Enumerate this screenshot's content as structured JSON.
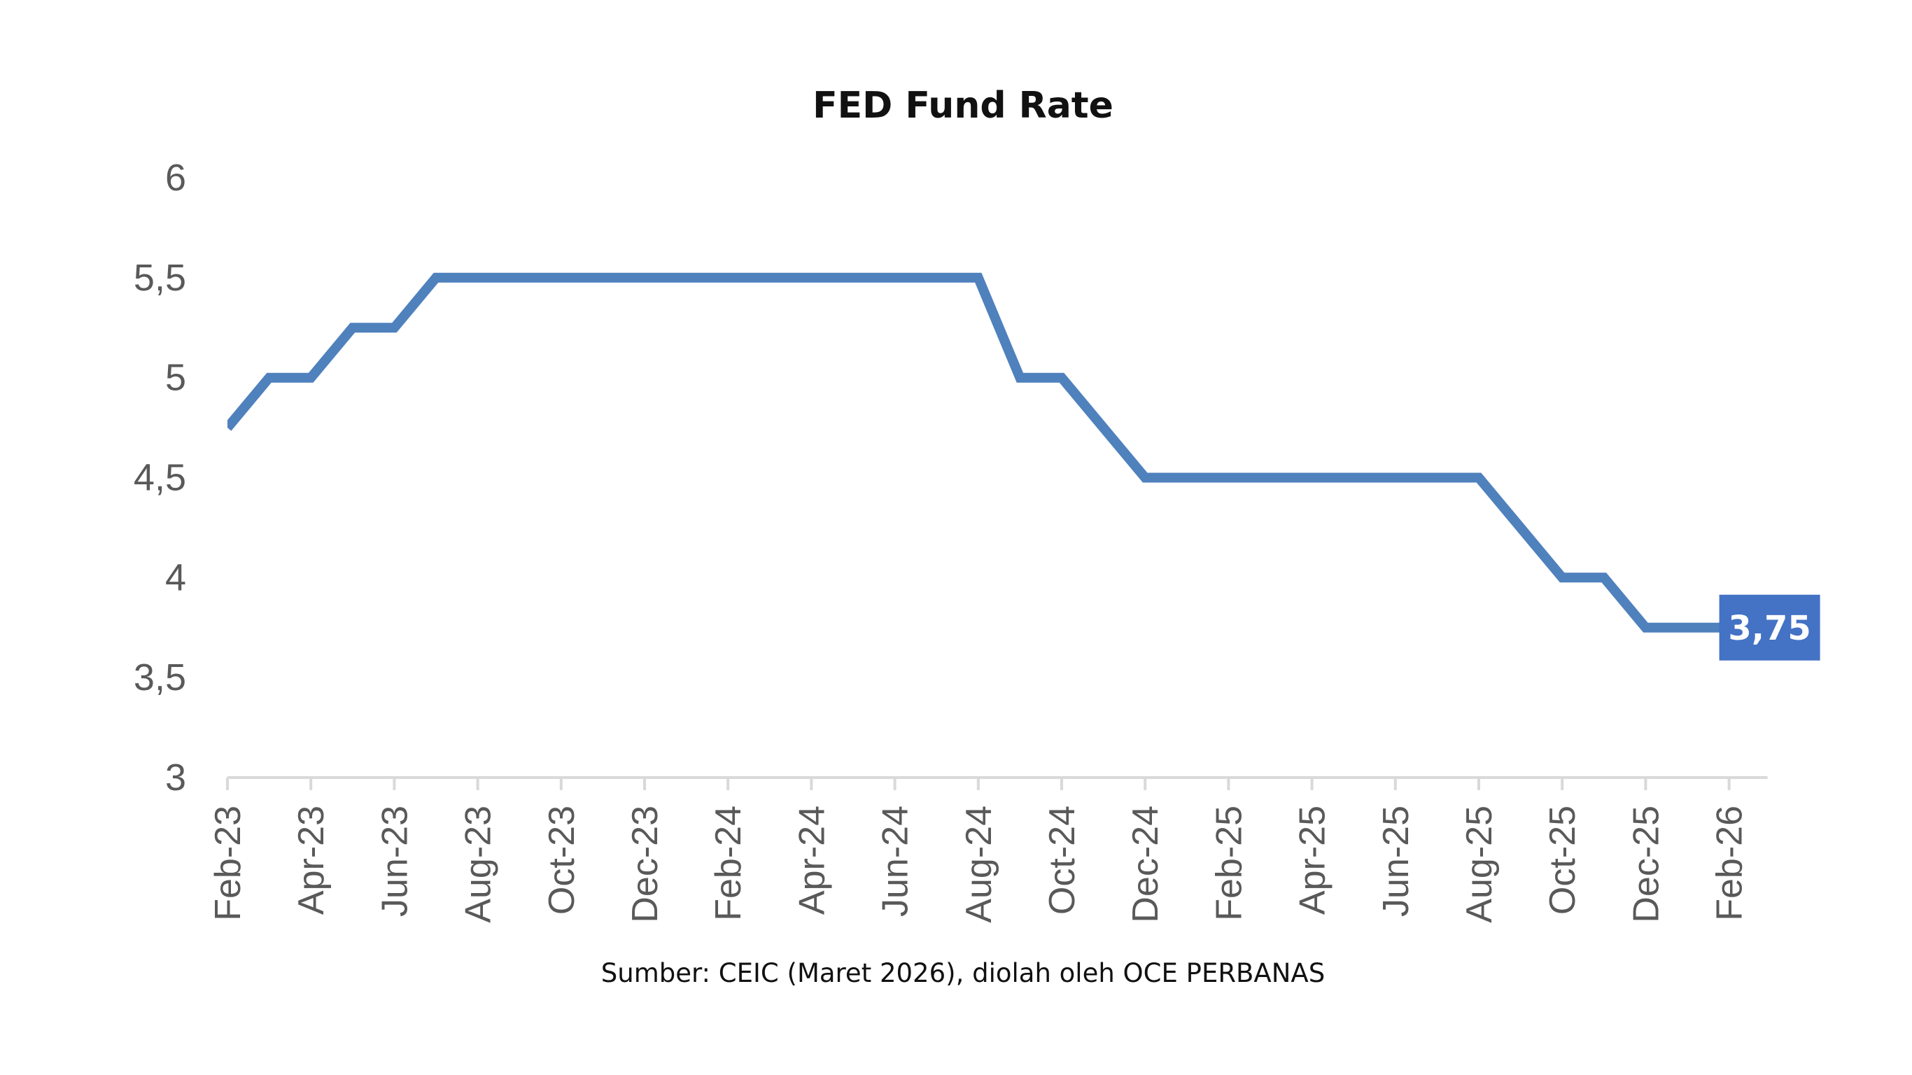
{
  "chart_data": {
    "type": "line",
    "title": "FED Fund Rate",
    "xlabel": "",
    "ylabel": "",
    "x": [
      "Feb-23",
      "Mar-23",
      "Apr-23",
      "May-23",
      "Jun-23",
      "Jul-23",
      "Aug-23",
      "Sep-23",
      "Oct-23",
      "Nov-23",
      "Dec-23",
      "Jan-24",
      "Feb-24",
      "Mar-24",
      "Apr-24",
      "May-24",
      "Jun-24",
      "Jul-24",
      "Aug-24",
      "Sep-24",
      "Oct-24",
      "Nov-24",
      "Dec-24",
      "Jan-25",
      "Feb-25",
      "Mar-25",
      "Apr-25",
      "May-25",
      "Jun-25",
      "Jul-25",
      "Aug-25",
      "Sep-25",
      "Oct-25",
      "Nov-25",
      "Dec-25",
      "Jan-26",
      "Feb-26"
    ],
    "x_tick_labels": [
      "Feb-23",
      "Apr-23",
      "Jun-23",
      "Aug-23",
      "Oct-23",
      "Dec-23",
      "Feb-24",
      "Apr-24",
      "Jun-24",
      "Aug-24",
      "Oct-24",
      "Dec-24",
      "Feb-25",
      "Apr-25",
      "Jun-25",
      "Aug-25",
      "Oct-25",
      "Dec-25",
      "Feb-26"
    ],
    "series": [
      {
        "values": [
          4.75,
          5.0,
          5.0,
          5.25,
          5.25,
          5.5,
          5.5,
          5.5,
          5.5,
          5.5,
          5.5,
          5.5,
          5.5,
          5.5,
          5.5,
          5.5,
          5.5,
          5.5,
          5.5,
          5.0,
          5.0,
          4.75,
          4.5,
          4.5,
          4.5,
          4.5,
          4.5,
          4.5,
          4.5,
          4.5,
          4.5,
          4.25,
          4.0,
          4.0,
          3.75,
          3.75,
          3.75
        ]
      }
    ],
    "ylim": [
      3,
      6
    ],
    "y_ticks": [
      "3",
      "3,5",
      "4",
      "4,5",
      "5",
      "5,5",
      "6"
    ],
    "y_tick_values": [
      3,
      3.5,
      4,
      4.5,
      5,
      5.5,
      6
    ],
    "data_label": {
      "index": 36,
      "text": "3,75"
    },
    "line_color": "#4F81BD",
    "label_bg_color": "#4472C4",
    "grid": false,
    "legend": "none",
    "source": "Sumber: CEIC (Maret 2026), diolah oleh OCE PERBANAS"
  }
}
